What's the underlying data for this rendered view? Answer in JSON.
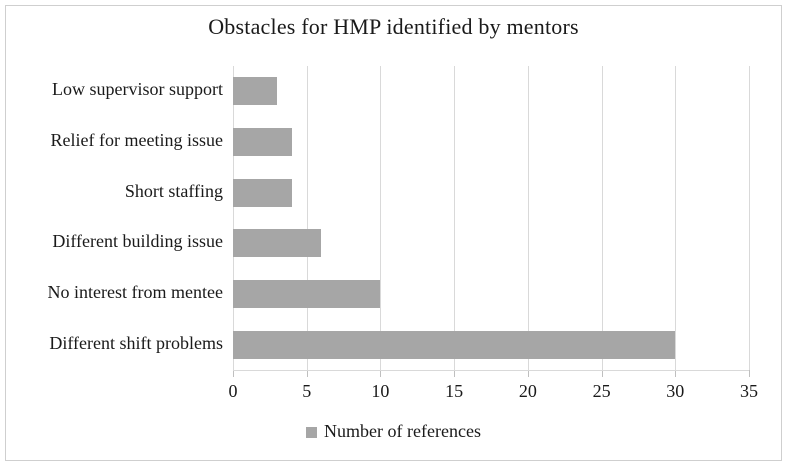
{
  "chart_data": {
    "type": "bar",
    "orientation": "horizontal",
    "title": "Obstacles for HMP identified by mentors",
    "categories": [
      "Low supervisor support",
      "Relief for meeting issue",
      "Short staffing",
      "Different building issue",
      "No interest from mentee",
      "Different shift problems"
    ],
    "values": [
      3,
      4,
      4,
      6,
      10,
      30
    ],
    "xlim": [
      0,
      35
    ],
    "xticks": [
      0,
      5,
      10,
      15,
      20,
      25,
      30,
      35
    ],
    "grid": "vertical-gridlines-on",
    "legend_label": "Number of references",
    "legend_position": "bottom-center",
    "bar_color": "#a6a6a6",
    "gridline_color": "#d9d9d9",
    "text_color": "#1a1a1a",
    "figure_border_color": "#cfcfcf"
  }
}
